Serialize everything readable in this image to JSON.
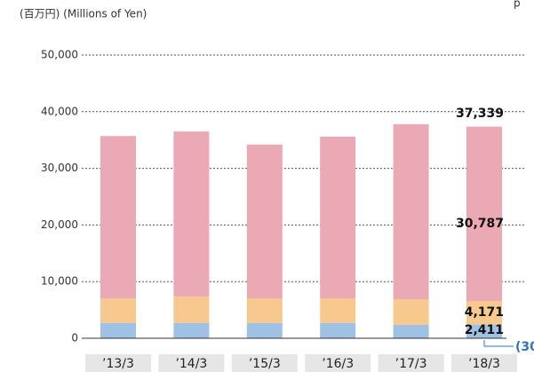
{
  "chart_data": {
    "type": "bar",
    "stacked": true,
    "y_label": "(百万円) (Millions of Yen)",
    "header_fragment": "p",
    "categories": [
      "’13/3",
      "’14/3",
      "’15/3",
      "’16/3",
      "’17/3",
      "’18/3"
    ],
    "series": [
      {
        "color": "#9fc1e4",
        "values": [
          2700,
          2700,
          2700,
          2700,
          2350,
          2411
        ],
        "value_labels": [
          null,
          null,
          null,
          null,
          null,
          "2,411"
        ]
      },
      {
        "color": "#f7c98e",
        "values": [
          4350,
          4650,
          4350,
          4350,
          4550,
          4171
        ],
        "value_labels": [
          null,
          null,
          null,
          null,
          null,
          "4,171"
        ]
      },
      {
        "color": "#eba9b6",
        "values": [
          28650,
          29150,
          27150,
          28550,
          30900,
          30787
        ],
        "value_labels": [
          null,
          null,
          null,
          null,
          null,
          "30,787"
        ]
      },
      {
        "color": "#2e75b6",
        "values": [
          null,
          null,
          null,
          null,
          null,
          -30
        ],
        "value_labels": [
          null,
          null,
          null,
          null,
          null,
          "(30"
        ]
      }
    ],
    "annotations": [
      {
        "category": 5,
        "value": 37339,
        "label": "37,339"
      }
    ],
    "ylim": [
      0,
      50000
    ],
    "yticks": [
      0,
      {
        "value": 10000,
        "label": "10,000"
      },
      {
        "value": 20000,
        "label": "20,000"
      },
      {
        "value": 30000,
        "label": "30,000"
      },
      {
        "value": 40000,
        "label": "40,000"
      },
      {
        "value": 50000,
        "label": "50,000"
      }
    ],
    "grid": true
  }
}
